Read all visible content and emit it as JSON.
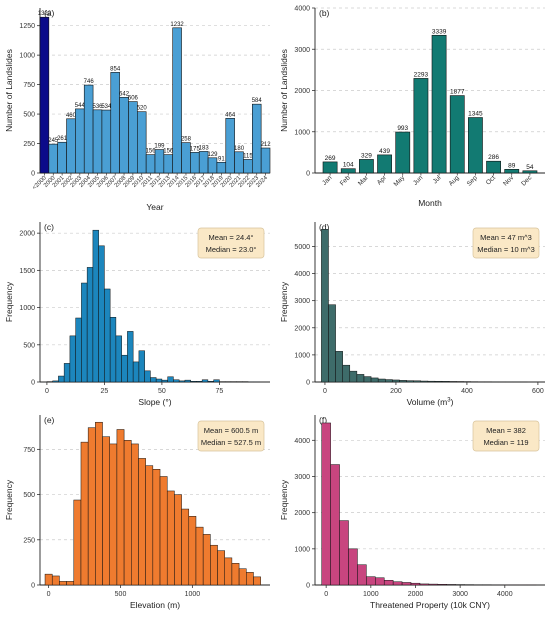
{
  "figure": {
    "colors": {
      "a_main": "#4a9fd4",
      "a_highlight": "#0b0b8a",
      "b": "#127a72",
      "c": "#1c86bd",
      "d": "#3e6c6a",
      "e": "#ef7b2f",
      "f": "#c8457f",
      "stat_box": "#fae8c6",
      "stat_box_border": "#d8c49c",
      "grid": "#cccccc"
    }
  },
  "chart_data": [
    {
      "id": "a",
      "panel_label": "(a)",
      "type": "bar",
      "xlabel": "Year",
      "ylabel": "Number of Landslides",
      "ylim": [
        0,
        1400
      ],
      "yticks": [
        0,
        250,
        500,
        750,
        1000,
        1250
      ],
      "grid": "horizontal dashed",
      "categories": [
        "<2000",
        "2000",
        "2001",
        "2002",
        "2003",
        "2004",
        "2005",
        "2006",
        "2007",
        "2008",
        "2009",
        "2010",
        "2011",
        "2012",
        "2013",
        "2014",
        "2015",
        "2016",
        "2017",
        "2018",
        "2019",
        "2020",
        "2021",
        "2022",
        "2023",
        "2024"
      ],
      "values": [
        1322,
        245,
        261,
        460,
        544,
        746,
        536,
        534,
        854,
        642,
        606,
        520,
        156,
        199,
        156,
        1232,
        258,
        175,
        183,
        129,
        91,
        464,
        180,
        115,
        584,
        212
      ],
      "highlight_index": 0
    },
    {
      "id": "b",
      "panel_label": "(b)",
      "type": "bar",
      "xlabel": "Month",
      "ylabel": "Number of Landslides",
      "ylim": [
        0,
        4000
      ],
      "yticks": [
        0,
        1000,
        2000,
        3000,
        4000
      ],
      "grid": "horizontal dashed",
      "categories": [
        "Jan",
        "Feb",
        "Mar",
        "Apr",
        "May",
        "Jun",
        "Jul",
        "Aug",
        "Sep",
        "Oct",
        "Nov",
        "Dec"
      ],
      "values": [
        269,
        104,
        329,
        439,
        993,
        2293,
        3339,
        1877,
        1345,
        286,
        89,
        54
      ]
    },
    {
      "id": "c",
      "panel_label": "(c)",
      "type": "bar",
      "subtype": "histogram",
      "xlabel": "Slope (°)",
      "ylabel": "Frequency",
      "xlim": [
        -3,
        97
      ],
      "xticks": [
        0,
        25,
        50,
        75
      ],
      "ylim": [
        0,
        2150
      ],
      "yticks": [
        0,
        500,
        1000,
        1500,
        2000
      ],
      "grid": "horizontal dashed",
      "bin_start": 0,
      "bin_width": 2.5,
      "values": [
        5,
        15,
        80,
        250,
        620,
        860,
        1330,
        1540,
        2040,
        1830,
        1250,
        870,
        620,
        360,
        680,
        270,
        420,
        150,
        60,
        40,
        25,
        70,
        30,
        15,
        25,
        10,
        10,
        30,
        10,
        30,
        5,
        5,
        5,
        5,
        5,
        2,
        2
      ],
      "stats": {
        "mean": "Mean = 24.4°",
        "median": "Median = 23.0°"
      }
    },
    {
      "id": "d",
      "panel_label": "(d)",
      "type": "bar",
      "subtype": "histogram",
      "xlabel_main": "Volume (m",
      "xlabel_sup": "3",
      "xlabel_end": ")",
      "ylabel": "Frequency",
      "xlim": [
        -28,
        620
      ],
      "xticks": [
        0,
        200,
        400,
        600
      ],
      "ylim": [
        0,
        5900
      ],
      "yticks": [
        0,
        1000,
        2000,
        3000,
        4000,
        5000
      ],
      "grid": "horizontal dashed",
      "bin_start": -10,
      "bin_width": 20,
      "values": [
        5630,
        2850,
        1130,
        620,
        400,
        280,
        200,
        150,
        110,
        90,
        75,
        60,
        50,
        45,
        35,
        30,
        28,
        25,
        20,
        18,
        15,
        12,
        10,
        10,
        8,
        6,
        5,
        4,
        2
      ],
      "stats": {
        "mean": "Mean = 47 m^3",
        "median": "Median = 10 m^3"
      }
    },
    {
      "id": "e",
      "panel_label": "(e)",
      "type": "bar",
      "subtype": "histogram",
      "xlabel": "Elevation (m)",
      "ylabel": "Frequency",
      "xlim": [
        -60,
        1540
      ],
      "xticks": [
        0,
        500,
        1000
      ],
      "ylim": [
        0,
        940
      ],
      "yticks": [
        0,
        250,
        500,
        750
      ],
      "grid": "horizontal dashed",
      "bin_start": -25,
      "bin_width": 50,
      "values": [
        60,
        50,
        20,
        20,
        470,
        790,
        870,
        900,
        820,
        780,
        860,
        800,
        780,
        700,
        660,
        640,
        600,
        520,
        500,
        420,
        380,
        320,
        280,
        220,
        190,
        150,
        120,
        90,
        70,
        45
      ],
      "stats": {
        "mean": "Mean = 600.5 m",
        "median": "Median = 527.5 m"
      }
    },
    {
      "id": "f",
      "panel_label": "(f)",
      "type": "bar",
      "subtype": "histogram",
      "xlabel": "Threatened Property (10k CNY)",
      "ylabel": "Frequency",
      "xlim": [
        -250,
        4900
      ],
      "xticks": [
        0,
        1000,
        2000,
        3000,
        4000
      ],
      "ylim": [
        0,
        4700
      ],
      "yticks": [
        0,
        1000,
        2000,
        3000,
        4000
      ],
      "grid": "horizontal dashed",
      "bin_start": -100,
      "bin_width": 200,
      "values": [
        4480,
        3330,
        1780,
        1000,
        560,
        230,
        200,
        130,
        90,
        70,
        50,
        30,
        25,
        20,
        15,
        12,
        10,
        8,
        8,
        6,
        5,
        4,
        3,
        3
      ],
      "stats": {
        "mean": "Mean = 382",
        "median": "Median = 119"
      }
    }
  ]
}
